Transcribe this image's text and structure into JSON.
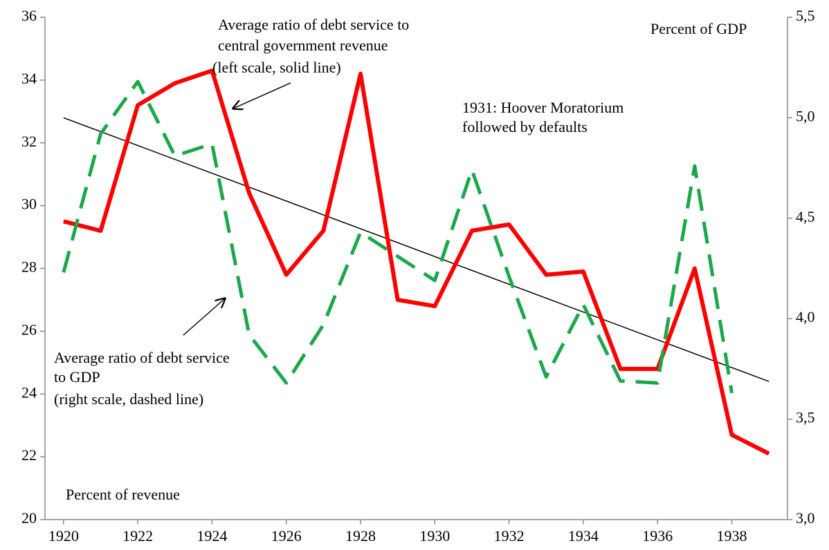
{
  "chart_data": {
    "type": "line",
    "x": [
      1920,
      1921,
      1922,
      1923,
      1924,
      1925,
      1926,
      1927,
      1928,
      1929,
      1930,
      1931,
      1932,
      1933,
      1934,
      1935,
      1936,
      1937,
      1938,
      1939
    ],
    "series": [
      {
        "color": "#ff0000",
        "axis": "y",
        "dashed": false,
        "values": [
          29.5,
          29.2,
          33.2,
          33.9,
          34.3,
          30.4,
          27.8,
          29.2,
          34.2,
          27.0,
          26.8,
          29.2,
          29.4,
          27.8,
          27.9,
          24.8,
          24.8,
          28.0,
          22.7,
          22.1
        ]
      },
      {
        "color": "#1aa84a",
        "axis": "y2",
        "dashed": true,
        "values": [
          4.23,
          4.92,
          5.18,
          4.81,
          4.87,
          3.92,
          3.68,
          3.97,
          4.43,
          4.31,
          4.19,
          4.74,
          4.21,
          3.71,
          4.07,
          3.69,
          3.68,
          4.76,
          3.63,
          null
        ]
      }
    ],
    "trend": {
      "x": [
        1920,
        1939
      ],
      "values": [
        32.8,
        24.4
      ],
      "color": "#000000"
    },
    "xlim": [
      1919.5,
      1939.5
    ],
    "xticks": [
      1920,
      1922,
      1924,
      1926,
      1928,
      1930,
      1932,
      1934,
      1936,
      1938
    ],
    "ylim": [
      20,
      36
    ],
    "yticks": [
      20,
      22,
      24,
      26,
      28,
      30,
      32,
      34,
      36
    ],
    "y2lim": [
      3,
      5.5
    ],
    "y2ticks": [
      {
        "value": 3,
        "label": "3,0"
      },
      {
        "value": 3.5,
        "label": "3,5"
      },
      {
        "value": 4,
        "label": "4,0"
      },
      {
        "value": 4.5,
        "label": "4,5"
      },
      {
        "value": 5,
        "label": "5,0"
      },
      {
        "value": 5.5,
        "label": "5,5"
      }
    ],
    "annotations": [
      "Average ratio of debt service to",
      "central government revenue",
      "(left scale, solid line)",
      "Percent of GDP",
      "1931: Hoover Moratorium",
      "followed by defaults",
      "Average ratio of debt service",
      "to GDP",
      "(right scale, dashed line)",
      "Percent of revenue"
    ]
  }
}
